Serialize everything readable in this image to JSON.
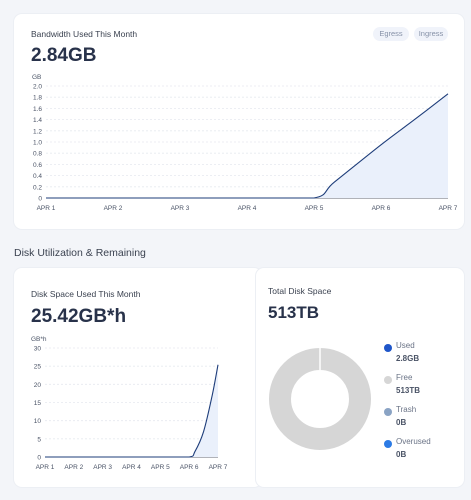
{
  "bandwidth_card": {
    "title": "Bandwidth Used This Month",
    "value": "2.84GB",
    "toggles": [
      "Egress",
      "Ingress"
    ]
  },
  "section": {
    "title": "Disk Utilization & Remaining"
  },
  "disk_space_card": {
    "title": "Disk Space Used This Month",
    "value": "25.42GB*h"
  },
  "total_disk_card": {
    "title": "Total Disk Space",
    "value": "513TB",
    "legend": [
      {
        "label": "Used",
        "value": "2.8GB",
        "color": "#1f56c9"
      },
      {
        "label": "Free",
        "value": "513TB",
        "color": "#d6d6d6"
      },
      {
        "label": "Trash",
        "value": "0B",
        "color": "#8aa3c4"
      },
      {
        "label": "Overused",
        "value": "0B",
        "color": "#2c7be5"
      }
    ]
  },
  "chart_data": [
    {
      "type": "area",
      "ylabel": "GB",
      "categories": [
        "APR 1",
        "APR 2",
        "APR 3",
        "APR 4",
        "APR 5",
        "APR 6",
        "APR 7"
      ],
      "ylim": [
        0,
        2.0
      ],
      "yticks": [
        "0",
        "0.2",
        "0.4",
        "0.6",
        "0.8",
        "1.0",
        "1.2",
        "1.4",
        "1.6",
        "1.8",
        "2.0"
      ],
      "x": [
        0,
        1,
        2,
        3,
        4,
        4.3,
        5,
        5.5,
        6
      ],
      "values": [
        0,
        0,
        0,
        0,
        0,
        0.28,
        0.95,
        1.4,
        1.86
      ],
      "grid": true,
      "color": "#1e3d7a"
    },
    {
      "type": "area",
      "ylabel": "GB*h",
      "categories": [
        "APR 1",
        "APR 2",
        "APR 3",
        "APR 4",
        "APR 5",
        "APR 6",
        "APR 7"
      ],
      "ylim": [
        0,
        30
      ],
      "yticks": [
        "0",
        "5",
        "10",
        "15",
        "20",
        "25",
        "30"
      ],
      "x": [
        0,
        1,
        2,
        3,
        4,
        5,
        5.2,
        5.5,
        5.8,
        6
      ],
      "values": [
        0,
        0,
        0,
        0,
        0,
        0,
        1.5,
        7,
        17,
        25.4
      ],
      "grid": true,
      "color": "#1e3d7a"
    },
    {
      "type": "pie",
      "categories": [
        "Used",
        "Free",
        "Trash",
        "Overused"
      ],
      "values": [
        2.8,
        513000,
        0,
        0
      ],
      "colors": [
        "#1f56c9",
        "#d6d6d6",
        "#8aa3c4",
        "#2c7be5"
      ],
      "donut": true
    }
  ]
}
